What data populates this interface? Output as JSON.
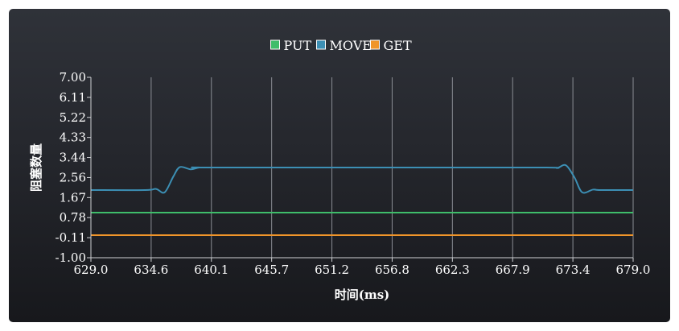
{
  "chart_data": {
    "type": "line",
    "title": "",
    "xlabel": "时间(ms)",
    "ylabel": "阻塞数量",
    "xlim": [
      629.0,
      679.0
    ],
    "ylim": [
      -1.0,
      7.0
    ],
    "x_ticks": [
      "629.0",
      "634.6",
      "640.1",
      "645.7",
      "651.2",
      "656.8",
      "662.3",
      "667.9",
      "673.4",
      "679.0"
    ],
    "y_ticks": [
      "7.00",
      "6.11",
      "5.22",
      "4.33",
      "3.44",
      "2.56",
      "1.67",
      "0.78",
      "-0.11",
      "-1.00"
    ],
    "grid": {
      "vertical": true,
      "horizontal": false
    },
    "legend": {
      "position": "top-center"
    },
    "series": [
      {
        "name": "PUT",
        "color": "#3fbd6a",
        "x": [
          629.0,
          679.0
        ],
        "y": [
          1.0,
          1.0
        ]
      },
      {
        "name": "MOVE",
        "color": "#3c8fb4",
        "x": [
          629.0,
          634.0,
          635.0,
          635.8,
          636.6,
          637.2,
          638.2,
          639.0,
          640.1,
          660.0,
          671.0,
          672.0,
          672.8,
          673.6,
          674.3,
          675.3,
          676.0,
          679.0
        ],
        "y": [
          2.0,
          2.0,
          2.05,
          1.9,
          2.6,
          3.02,
          2.92,
          3.0,
          3.0,
          3.0,
          3.0,
          2.98,
          3.1,
          2.55,
          1.9,
          2.02,
          2.0,
          2.0
        ]
      },
      {
        "name": "GET",
        "color": "#f0952a",
        "x": [
          629.0,
          679.0
        ],
        "y": [
          0.0,
          0.0
        ]
      }
    ]
  }
}
